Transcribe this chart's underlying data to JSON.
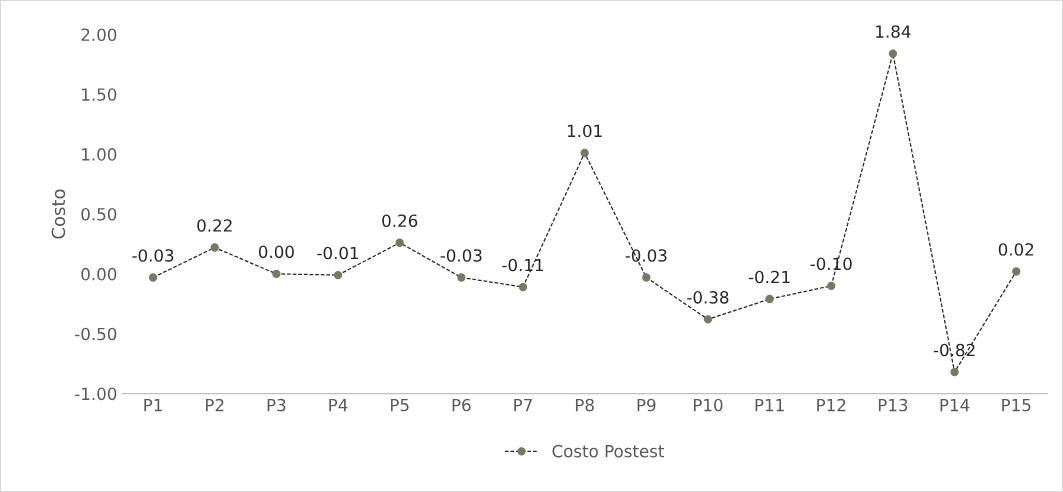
{
  "chart_data": {
    "type": "line",
    "ylabel": "Costo",
    "categories": [
      "P1",
      "P2",
      "P3",
      "P4",
      "P5",
      "P6",
      "P7",
      "P8",
      "P9",
      "P10",
      "P11",
      "P12",
      "P13",
      "P14",
      "P15"
    ],
    "series": [
      {
        "name": "Costo Postest",
        "color": "#767a64",
        "values": [
          -0.03,
          0.22,
          0.0,
          -0.01,
          0.26,
          -0.03,
          -0.11,
          1.01,
          -0.03,
          -0.38,
          -0.21,
          -0.1,
          1.84,
          -0.82,
          0.02
        ],
        "value_labels": [
          "-0.03",
          "0.22",
          "0.00",
          "-0.01",
          "0.26",
          "-0.03",
          "-0.11",
          "1.01",
          "-0.03",
          "-0.38",
          "-0.21",
          "-0.10",
          "1.84",
          "-0.82",
          "0.02"
        ]
      }
    ],
    "ylim": [
      -1,
      2
    ],
    "yticks": [
      {
        "value": -1,
        "label": "-1.00"
      },
      {
        "value": -0.5,
        "label": "-0.50"
      },
      {
        "value": 0,
        "label": "0.00"
      },
      {
        "value": 0.5,
        "label": "0.50"
      },
      {
        "value": 1,
        "label": "1.00"
      },
      {
        "value": 1.5,
        "label": "1.50"
      },
      {
        "value": 2,
        "label": "2.00"
      }
    ],
    "grid": false,
    "legend": "bottom",
    "marker": "circle",
    "line_style": "dashed"
  }
}
